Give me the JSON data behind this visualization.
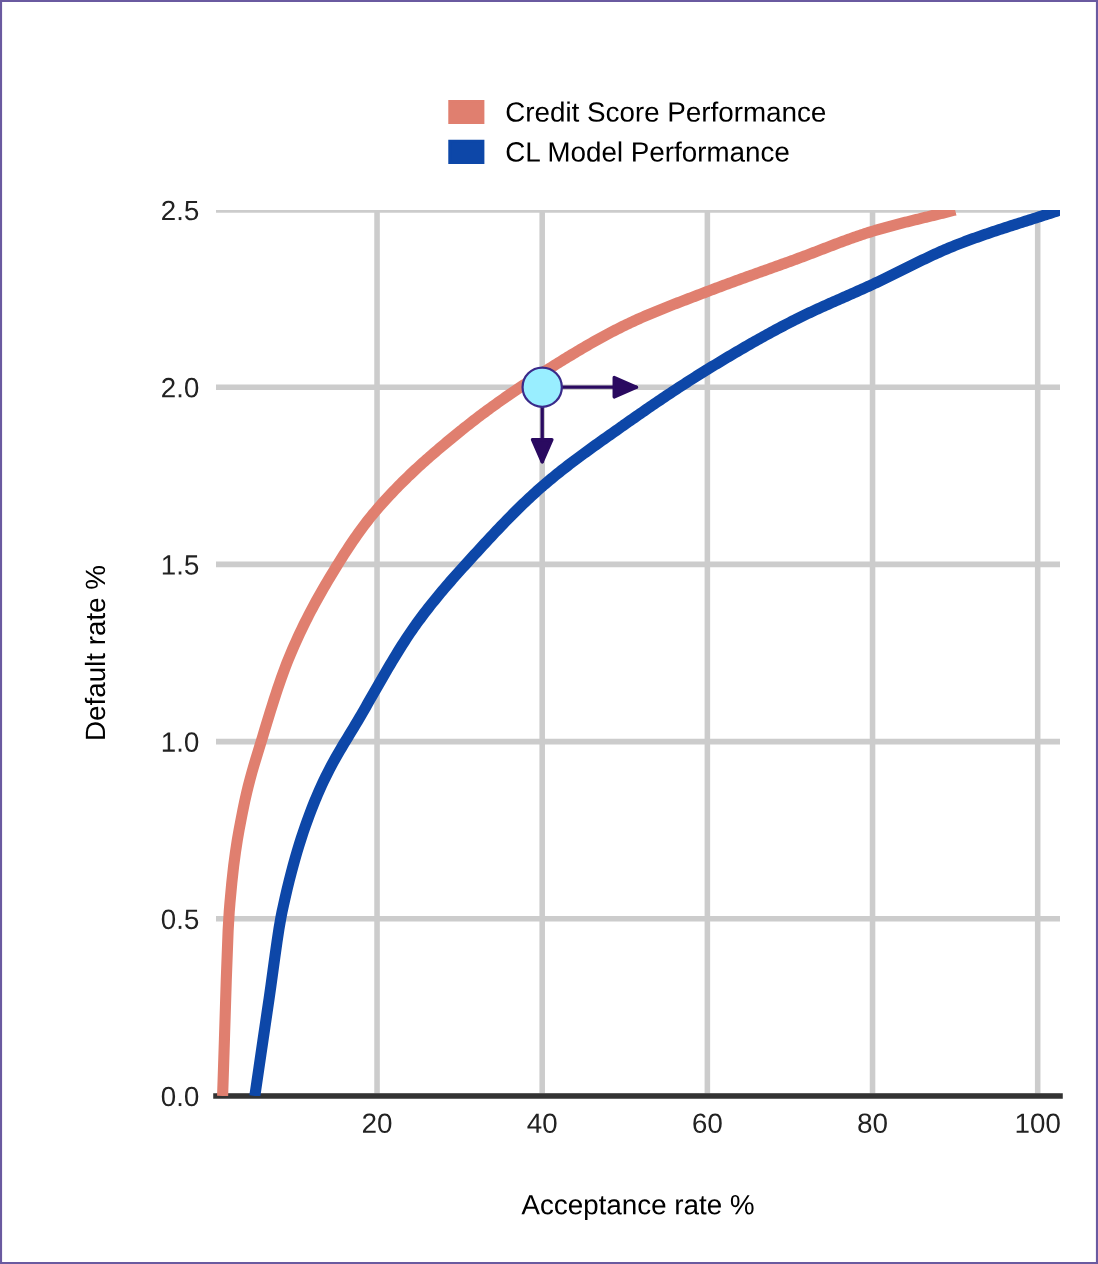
{
  "chart_data": {
    "type": "line",
    "xlabel": "Acceptance rate %",
    "ylabel": "Default rate %",
    "xlim": [
      0.5,
      102.7
    ],
    "ylim": [
      0,
      2.5
    ],
    "xticks": [
      20,
      40,
      60,
      80,
      100
    ],
    "yticks": [
      {
        "value": 0,
        "label": "0.0"
      },
      {
        "value": 0.5,
        "label": "0.5"
      },
      {
        "value": 1,
        "label": "1.0"
      },
      {
        "value": 1.5,
        "label": "1.5"
      },
      {
        "value": 2,
        "label": "2.0"
      },
      {
        "value": 2.5,
        "label": "2.5"
      }
    ],
    "grid": true,
    "legend": "top",
    "marker": "none",
    "line_style": "solid",
    "series": [
      {
        "name": "Credit Score Performance",
        "color": "#e07f6f",
        "x": [
          1.3,
          2.1,
          3.7,
          6.1,
          9.4,
          14.2,
          19.8,
          30.3,
          40,
          50.5,
          60,
          70.6,
          80,
          90
        ],
        "values": [
          0,
          0.52,
          0.8,
          1.01,
          1.24,
          1.46,
          1.65,
          1.88,
          2.04,
          2.18,
          2.27,
          2.36,
          2.44,
          2.5
        ]
      },
      {
        "name": "CL Model Performance",
        "color": "#0d47a8",
        "x": [
          5.2,
          6.9,
          8.5,
          12.6,
          18.2,
          24.7,
          31.9,
          40,
          49.7,
          60,
          70.6,
          80,
          90,
          102.7
        ],
        "values": [
          0,
          0.27,
          0.52,
          0.84,
          1.08,
          1.33,
          1.53,
          1.72,
          1.89,
          2.05,
          2.19,
          2.29,
          2.4,
          2.5
        ]
      },
      {
        "type": "scatter",
        "marker": "circle",
        "color": "#99eeff",
        "x": [
          40
        ],
        "values": [
          2.0
        ]
      }
    ]
  }
}
